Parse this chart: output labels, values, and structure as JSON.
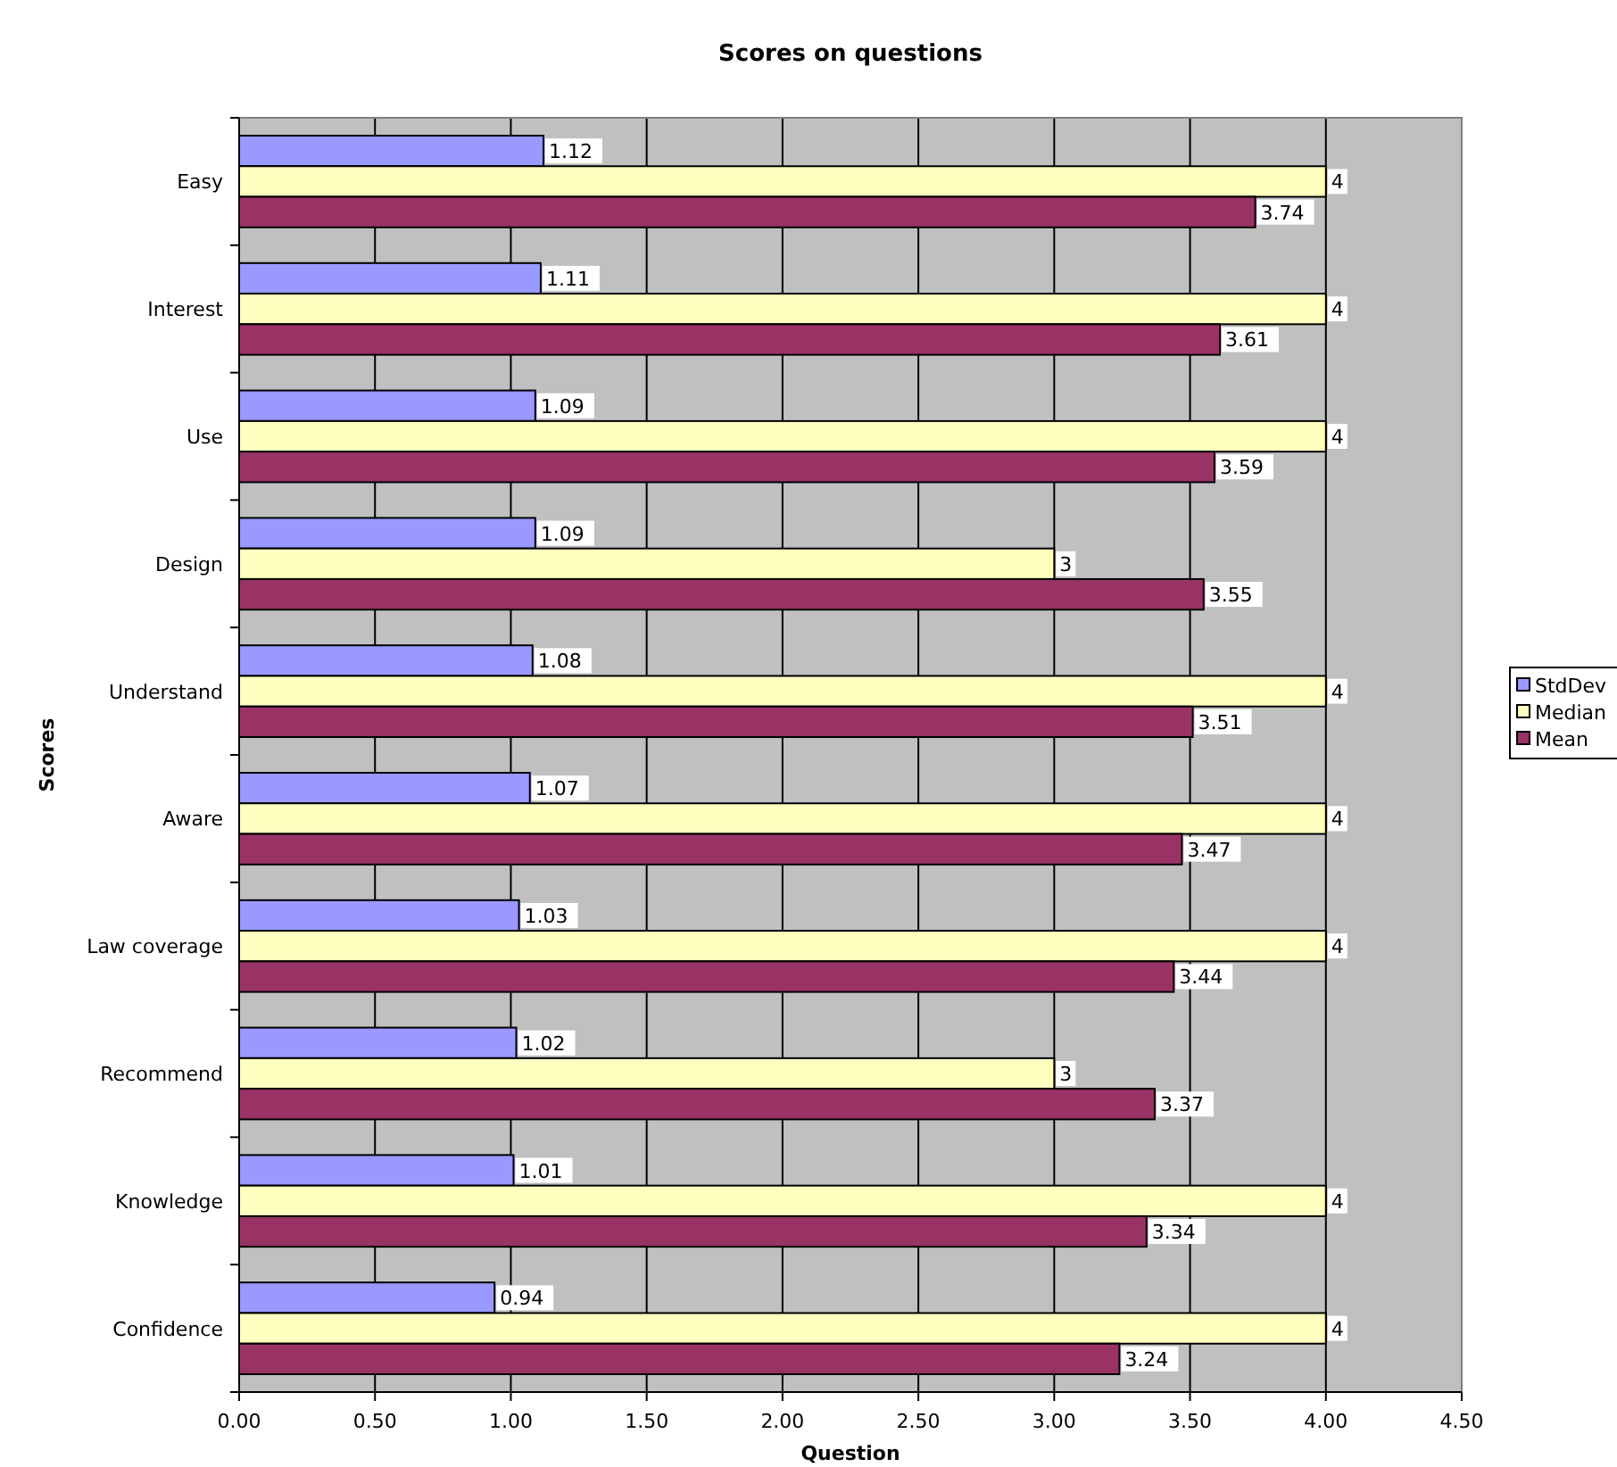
{
  "chart_data": {
    "type": "bar",
    "orientation": "horizontal",
    "title": "Scores on questions",
    "xlabel": "Question",
    "ylabel": "Scores",
    "categories": [
      "Easy",
      "Interest",
      "Use",
      "Design",
      "Understand",
      "Aware",
      "Law coverage",
      "Recommend",
      "Knowledge",
      "Confidence"
    ],
    "series": [
      {
        "name": "StdDev",
        "color": "#9999ff",
        "values": [
          1.12,
          1.11,
          1.09,
          1.09,
          1.08,
          1.07,
          1.03,
          1.02,
          1.01,
          0.94
        ]
      },
      {
        "name": "Median",
        "color": "#ffffc0",
        "values": [
          4,
          4,
          4,
          3,
          4,
          4,
          4,
          3,
          4,
          4
        ]
      },
      {
        "name": "Mean",
        "color": "#993366",
        "values": [
          3.74,
          3.61,
          3.59,
          3.55,
          3.51,
          3.47,
          3.44,
          3.37,
          3.34,
          3.24
        ]
      }
    ],
    "xlim": [
      0,
      4.5
    ],
    "xticks": [
      {
        "value": 0,
        "label": "0.00"
      },
      {
        "value": 0.5,
        "label": "0.50"
      },
      {
        "value": 1,
        "label": "1.00"
      },
      {
        "value": 1.5,
        "label": "1.50"
      },
      {
        "value": 2,
        "label": "2.00"
      },
      {
        "value": 2.5,
        "label": "2.50"
      },
      {
        "value": 3,
        "label": "3.00"
      },
      {
        "value": 3.5,
        "label": "3.50"
      },
      {
        "value": 4,
        "label": "4.00"
      },
      {
        "value": 4.5,
        "label": "4.50"
      }
    ],
    "grid": "x",
    "legend": "right",
    "data_labels": true
  }
}
